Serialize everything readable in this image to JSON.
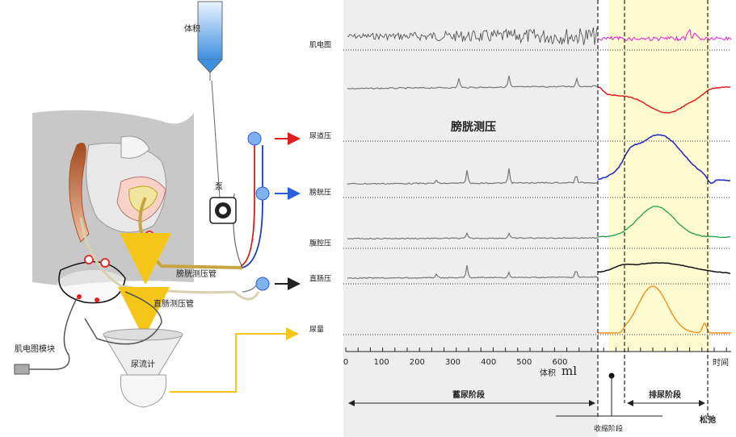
{
  "left_diagram": {
    "volume": "体积",
    "pump": "泵",
    "bladder_tube": "膀胱测压管",
    "rectal_tube": "直肠测压管",
    "emg_module": "肌电图模块",
    "flowmeter": "尿流计"
  },
  "traces": {
    "panel_label": "膀胱测压",
    "rows": [
      "肌电图",
      "尿道压",
      "膀胱压",
      "腹腔压",
      "直肠压",
      "尿量"
    ]
  },
  "axis": {
    "ticks": [
      0,
      100,
      200,
      300,
      400,
      500,
      600
    ],
    "volume_label": "体积",
    "unit": "ml",
    "time_label": "时间"
  },
  "phases": {
    "storage": "蓄尿阶段",
    "contraction": "收缩阶段",
    "voiding": "排尿阶段",
    "relaxation": "松弛"
  }
}
